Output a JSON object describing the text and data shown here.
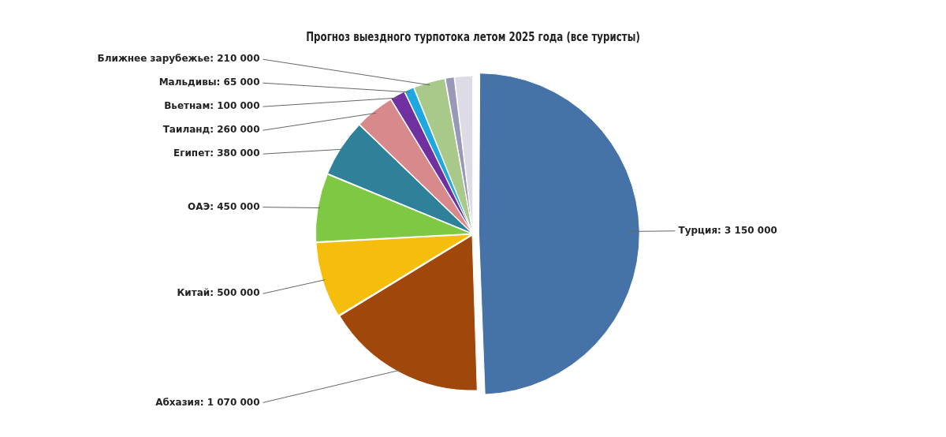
{
  "chart_data": {
    "type": "pie",
    "title": "Прогноз выездного турпотока летом 2025 года (все туристы)",
    "categories": [
      "Турция",
      "Абхазия",
      "Китай",
      "ОАЭ",
      "Египет",
      "Таиланд",
      "Вьетнам",
      "Мальдивы",
      "Ближнее зарубежье",
      null,
      null
    ],
    "values": [
      3150000,
      1070000,
      500000,
      450000,
      380000,
      260000,
      100000,
      65000,
      210000,
      60000,
      120000
    ],
    "colors": [
      "#4572a7",
      "#a0480b",
      "#f5bd0c",
      "#7fc843",
      "#2f8199",
      "#d7898b",
      "#7030a0",
      "#1fa8e0",
      "#a9c98a",
      "#9a98b8",
      "#dcdbe6"
    ],
    "value_labels": [
      "3 150 000",
      "1 070 000",
      "500 000",
      "450 000",
      "380 000",
      "260 000",
      "100 000",
      "65 000",
      "210 000",
      null,
      null
    ],
    "legend": false
  }
}
